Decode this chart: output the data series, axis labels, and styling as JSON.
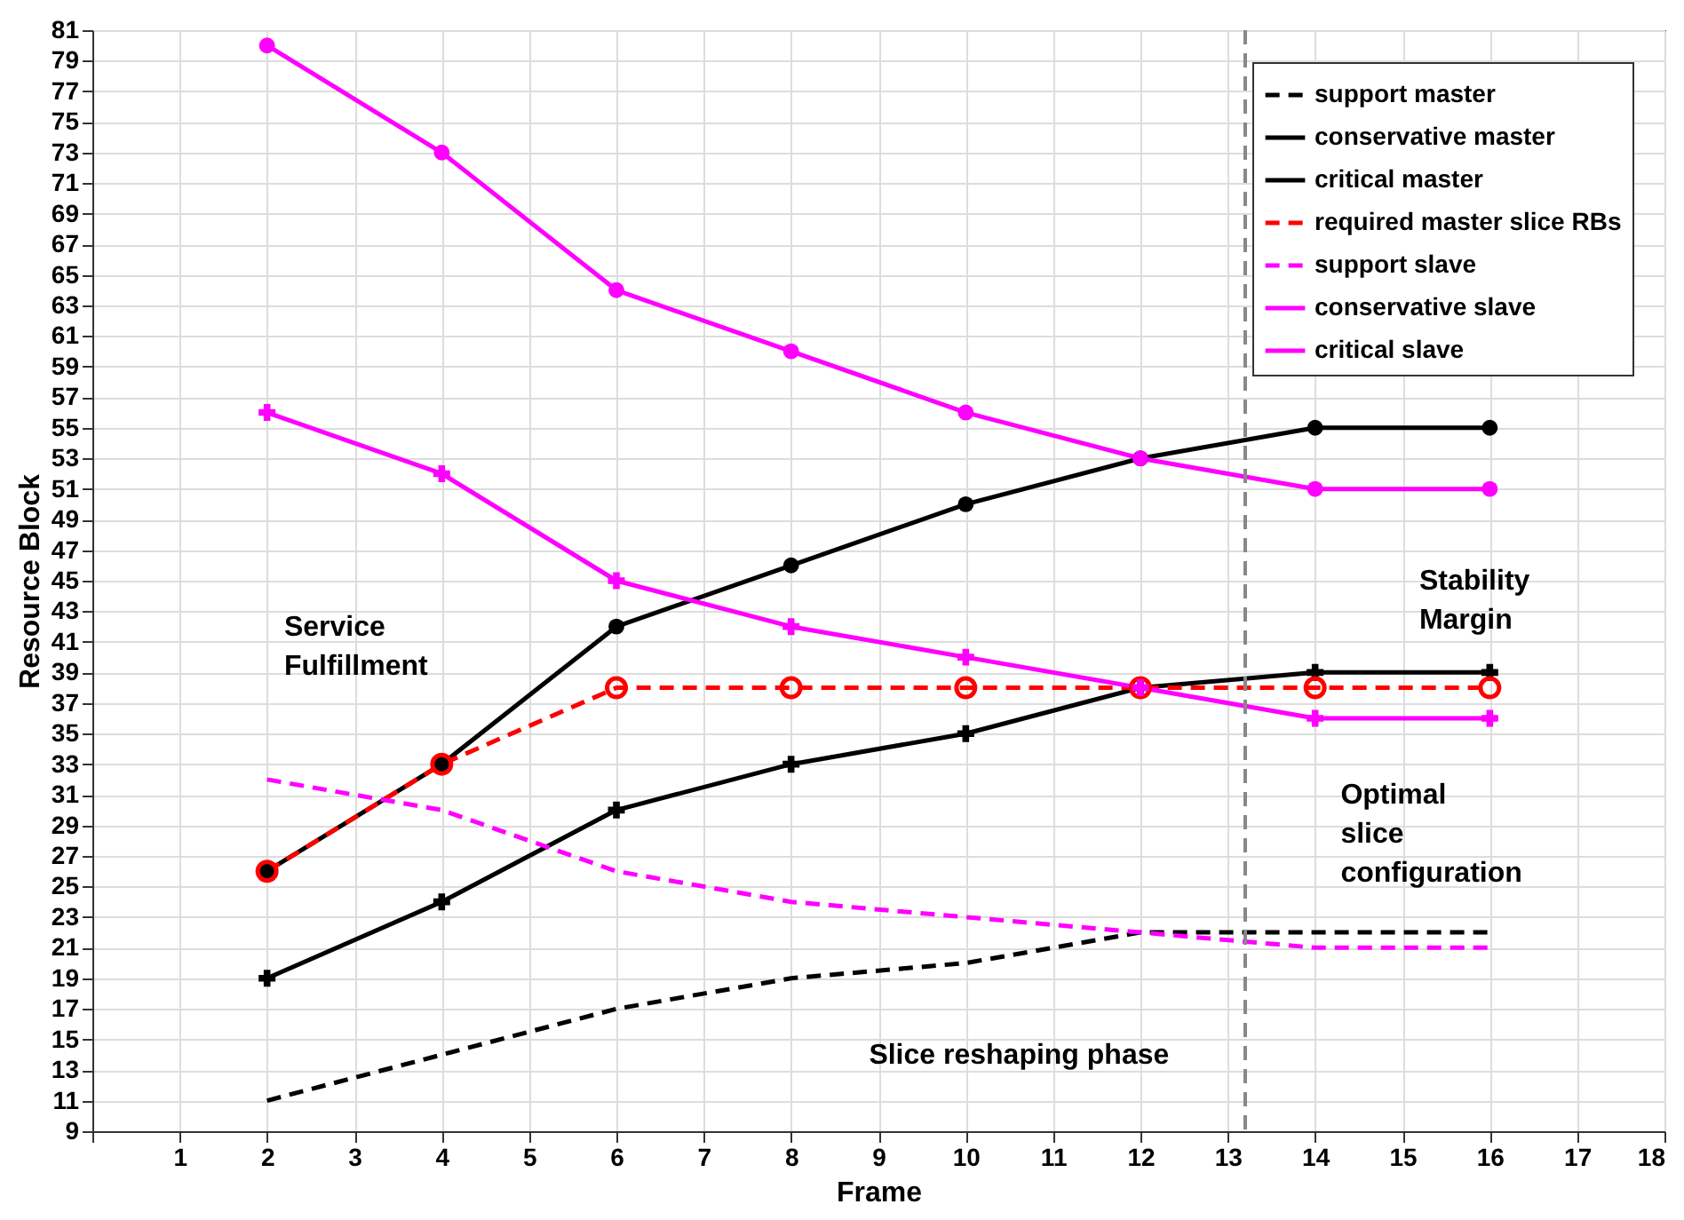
{
  "chart_data": {
    "type": "line",
    "xlabel": "Frame",
    "ylabel": "Resource Block",
    "x": [
      2,
      4,
      6,
      8,
      10,
      12,
      14,
      16
    ],
    "series": [
      {
        "name": "support master",
        "color": "#000000",
        "line_style": "dashed",
        "marker": "none",
        "values": [
          11,
          14,
          17,
          19,
          20,
          22,
          22,
          22
        ]
      },
      {
        "name": "conservative master",
        "color": "#000000",
        "line_style": "solid",
        "marker": "cross",
        "values": [
          19,
          24,
          30,
          33,
          35,
          38,
          39,
          39
        ]
      },
      {
        "name": "critical master",
        "color": "#000000",
        "line_style": "solid",
        "marker": "circle",
        "values": [
          26,
          33,
          42,
          46,
          50,
          53,
          55,
          55
        ]
      },
      {
        "name": "required master slice RBs",
        "color": "#ff0000",
        "line_style": "dashed",
        "marker": "circle_open",
        "values": [
          26,
          33,
          38,
          38,
          38,
          38,
          38,
          38
        ]
      },
      {
        "name": "support slave",
        "color": "#ff00ff",
        "line_style": "dashed",
        "marker": "none",
        "values": [
          32,
          30,
          26,
          24,
          23,
          22,
          21,
          21
        ]
      },
      {
        "name": "conservative slave",
        "color": "#ff00ff",
        "line_style": "solid",
        "marker": "cross",
        "values": [
          56,
          52,
          45,
          42,
          40,
          38,
          36,
          36
        ]
      },
      {
        "name": "critical slave",
        "color": "#ff00ff",
        "line_style": "solid",
        "marker": "circle",
        "values": [
          80,
          73,
          64,
          60,
          56,
          53,
          51,
          51
        ]
      }
    ],
    "xlim": [
      0,
      18
    ],
    "xticks": [
      {
        "value": 0,
        "label": null
      },
      1,
      2,
      3,
      4,
      5,
      6,
      7,
      8,
      9,
      10,
      11,
      12,
      13,
      14,
      15,
      16,
      17,
      18
    ],
    "ylim": [
      9,
      81
    ],
    "yticks": [
      9,
      11,
      13,
      15,
      17,
      19,
      21,
      23,
      25,
      27,
      29,
      31,
      33,
      35,
      37,
      39,
      41,
      43,
      45,
      47,
      49,
      51,
      53,
      55,
      57,
      59,
      61,
      63,
      65,
      67,
      69,
      71,
      73,
      75,
      77,
      79,
      81
    ],
    "ref_lines": [
      {
        "axis": "x",
        "value": 13.2,
        "color": "#888888",
        "line_style": "dashed"
      }
    ],
    "annotations": [
      "Service\nFulfillment",
      "Stability\nMargin",
      "Optimal\nslice\nconfiguration",
      "Slice reshaping phase"
    ],
    "grid": true,
    "legend": "top right"
  }
}
